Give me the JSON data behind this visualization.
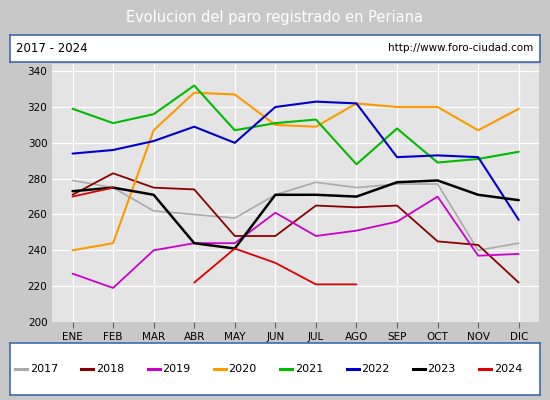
{
  "title": "Evolucion del paro registrado en Periana",
  "subtitle_left": "2017 - 2024",
  "subtitle_right": "http://www.foro-ciudad.com",
  "months": [
    "ENE",
    "FEB",
    "MAR",
    "ABR",
    "MAY",
    "JUN",
    "JUL",
    "AGO",
    "SEP",
    "OCT",
    "NOV",
    "DIC"
  ],
  "ylim": [
    200,
    344
  ],
  "yticks": [
    200,
    220,
    240,
    260,
    280,
    300,
    320,
    340
  ],
  "series": {
    "2017": {
      "color": "#aaaaaa",
      "linewidth": 1.2,
      "data": [
        279,
        275,
        262,
        260,
        258,
        271,
        278,
        275,
        277,
        277,
        240,
        244
      ]
    },
    "2018": {
      "color": "#8b0000",
      "linewidth": 1.3,
      "data": [
        271,
        283,
        275,
        274,
        248,
        248,
        265,
        264,
        265,
        245,
        243,
        222
      ]
    },
    "2019": {
      "color": "#cc00cc",
      "linewidth": 1.3,
      "data": [
        227,
        219,
        240,
        244,
        244,
        261,
        248,
        251,
        256,
        270,
        237,
        238
      ]
    },
    "2020": {
      "color": "#ff9900",
      "linewidth": 1.5,
      "data": [
        240,
        244,
        307,
        328,
        327,
        310,
        309,
        322,
        320,
        320,
        307,
        319
      ]
    },
    "2021": {
      "color": "#00bb00",
      "linewidth": 1.5,
      "data": [
        319,
        311,
        316,
        332,
        307,
        311,
        313,
        288,
        308,
        289,
        291,
        295
      ]
    },
    "2022": {
      "color": "#0000cc",
      "linewidth": 1.5,
      "data": [
        294,
        296,
        301,
        309,
        300,
        320,
        323,
        322,
        292,
        293,
        292,
        257
      ]
    },
    "2023": {
      "color": "#000000",
      "linewidth": 1.8,
      "data": [
        273,
        275,
        271,
        244,
        241,
        271,
        271,
        270,
        278,
        279,
        271,
        268
      ]
    },
    "2024": {
      "color": "#dd0000",
      "linewidth": 1.3,
      "data": [
        270,
        275,
        null,
        222,
        241,
        233,
        221,
        221,
        null,
        null,
        null,
        null
      ]
    }
  },
  "background_color": "#c8c8c8",
  "plot_bg_color": "#e4e4e4",
  "title_bg_color": "#4169b0",
  "title_text_color": "#ffffff",
  "header_bg_color": "#ffffff",
  "grid_color": "#ffffff",
  "legend_bg_color": "#ffffff",
  "legend_border_color": "#4169b0"
}
